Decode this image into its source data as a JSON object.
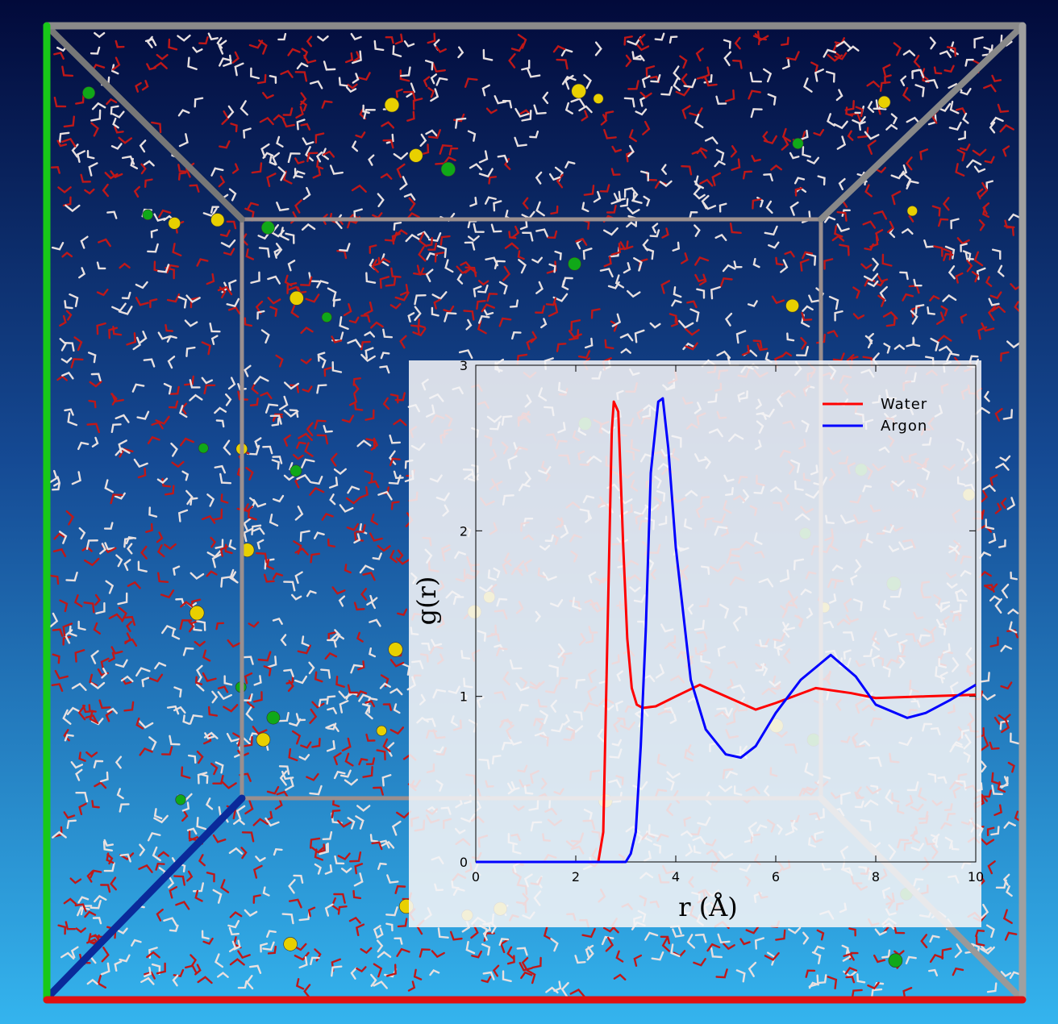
{
  "chart_data": {
    "type": "line",
    "xlabel": "r (Å)",
    "ylabel": "g(r)",
    "xlim": [
      0,
      10
    ],
    "ylim": [
      0,
      3
    ],
    "xticks": [
      0,
      2,
      4,
      6,
      8,
      10
    ],
    "yticks": [
      0,
      1,
      2,
      3
    ],
    "legend": "upper right",
    "series": [
      {
        "name": "Water",
        "color": "#ff0000",
        "x": [
          0,
          2.45,
          2.55,
          2.72,
          2.76,
          2.85,
          2.95,
          3.03,
          3.12,
          3.22,
          3.34,
          3.6,
          4.0,
          4.48,
          5.0,
          5.6,
          6.0,
          6.8,
          7.5,
          8.0,
          9.0,
          10
        ],
        "values": [
          0,
          0,
          0.18,
          2.6,
          2.78,
          2.72,
          1.9,
          1.35,
          1.05,
          0.95,
          0.93,
          0.94,
          1.0,
          1.07,
          1.0,
          0.92,
          0.96,
          1.05,
          1.02,
          0.99,
          1.0,
          1.01
        ]
      },
      {
        "name": "Argon",
        "color": "#0000ff",
        "x": [
          0,
          3.0,
          3.1,
          3.2,
          3.3,
          3.4,
          3.5,
          3.65,
          3.74,
          3.85,
          4.0,
          4.3,
          4.6,
          5.0,
          5.3,
          5.6,
          6.0,
          6.5,
          7.1,
          7.6,
          8.0,
          8.63,
          9.0,
          9.5,
          10
        ],
        "values": [
          0,
          0,
          0.05,
          0.18,
          0.7,
          1.4,
          2.35,
          2.78,
          2.8,
          2.5,
          1.9,
          1.1,
          0.8,
          0.65,
          0.63,
          0.7,
          0.9,
          1.1,
          1.25,
          1.12,
          0.95,
          0.87,
          0.9,
          0.98,
          1.07
        ]
      }
    ]
  }
}
